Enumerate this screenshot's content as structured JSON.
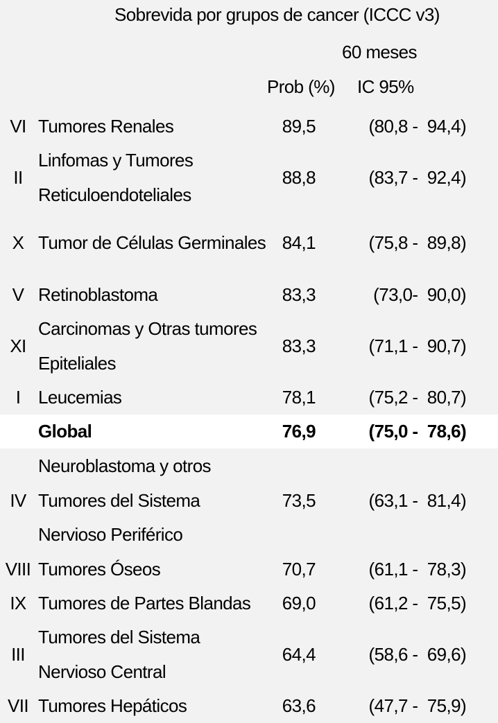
{
  "header": {
    "title": "Sobrevida por grupos de cancer (ICCC v3)",
    "period": "60 meses",
    "prob_label": "Prob (%)",
    "ci_label": "IC 95%"
  },
  "rows": [
    {
      "roman": "VI",
      "name": "Tumores Renales",
      "prob": "89,5",
      "ci": "(80,8 -  94,4)"
    },
    {
      "roman": "II",
      "name": "Linfomas y Tumores\nReticuloendoteliales",
      "prob": "88,8",
      "ci": "(83,7 -  92,4)"
    },
    {
      "roman": "X",
      "name": "Tumor de Células Germinales",
      "prob": "84,1",
      "ci": "(75,8 -  89,8)"
    },
    {
      "roman": "V",
      "name": "Retinoblastoma",
      "prob": "83,3",
      "ci": "(73,0-  90,0)"
    },
    {
      "roman": "XI",
      "name": "Carcinomas y Otras tumores\nEpiteliales",
      "prob": "83,3",
      "ci": "(71,1 -  90,7)"
    },
    {
      "roman": "I",
      "name": "Leucemias",
      "prob": "78,1",
      "ci": "(75,2 -  80,7)"
    },
    {
      "roman": "",
      "name": "Global",
      "prob": "76,9",
      "ci": "(75,0 -  78,6)"
    },
    {
      "roman": "IV",
      "name": "Neuroblastoma y otros\nTumores del Sistema\nNervioso Periférico",
      "prob": "73,5",
      "ci": "(63,1 -  81,4)"
    },
    {
      "roman": "VIII",
      "name": "Tumores Óseos",
      "prob": "70,7",
      "ci": "(61,1 -  78,3)"
    },
    {
      "roman": "IX",
      "name": "Tumores de Partes Blandas",
      "prob": "69,0",
      "ci": "(61,2 -  75,5)"
    },
    {
      "roman": "III",
      "name": "Tumores del Sistema\nNervioso Central",
      "prob": "64,4",
      "ci": "(58,6 -  69,6)"
    },
    {
      "roman": "VII",
      "name": "Tumores Hepáticos",
      "prob": "63,6",
      "ci": "(47,7 -  75,9)"
    }
  ]
}
